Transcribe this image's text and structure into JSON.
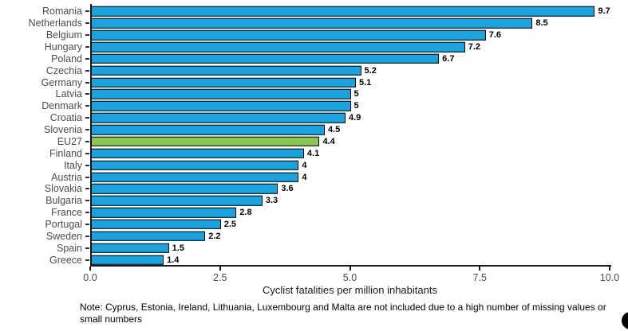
{
  "chart_data": {
    "type": "bar",
    "orientation": "horizontal",
    "title": "",
    "xlabel": "Cyclist fatalities per million inhabitants",
    "ylabel": "",
    "xlim": [
      0,
      10
    ],
    "grid": false,
    "legend": "none",
    "categories": [
      "Romania",
      "Netherlands",
      "Belgium",
      "Hungary",
      "Poland",
      "Czechia",
      "Germany",
      "Latvia",
      "Denmark",
      "Croatia",
      "Slovenia",
      "EU27",
      "Finland",
      "Italy",
      "Austria",
      "Slovakia",
      "Bulgaria",
      "France",
      "Portugal",
      "Sweden",
      "Spain",
      "Greece"
    ],
    "values": [
      9.7,
      8.5,
      7.6,
      7.2,
      6.7,
      5.2,
      5.1,
      5,
      5,
      4.9,
      4.5,
      4.4,
      4.1,
      4,
      4,
      3.6,
      3.3,
      2.8,
      2.5,
      2.2,
      1.5,
      1.4
    ],
    "value_labels": [
      "9.7",
      "8.5",
      "7.6",
      "7.2",
      "6.7",
      "5.2",
      "5.1",
      "5",
      "5",
      "4.9",
      "4.5",
      "4.4",
      "4.1",
      "4",
      "4",
      "3.6",
      "3.3",
      "2.8",
      "2.5",
      "2.2",
      "1.5",
      "1.4"
    ],
    "highlight_category": "EU27",
    "bar_color": "#1CA2DC",
    "highlight_color": "#8BC554",
    "bar_outline_color": "#000000",
    "xticks": [
      "0.0",
      "2.5",
      "5.0",
      "7.5",
      "10.0"
    ],
    "xtick_values": [
      0,
      2.5,
      5,
      7.5,
      10
    ]
  },
  "note": {
    "text": "Note: Cyprus, Estonia, Ireland, Lithuania, Luxembourg and Malta are not included due to a high number of missing values or small numbers"
  }
}
